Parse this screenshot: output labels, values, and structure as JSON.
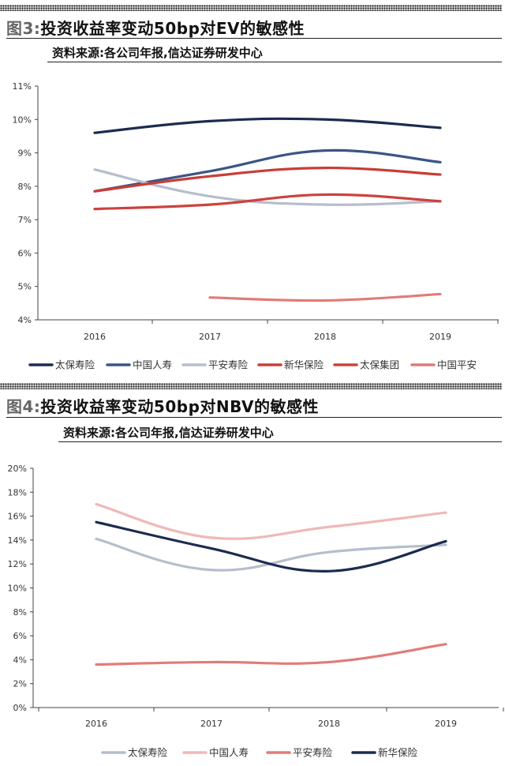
{
  "figures": [
    {
      "label": "图3:",
      "title": "投资收益率变动50bp对EV的敏感性",
      "source": "资料来源:各公司年报,信达证券研发中心",
      "chart_data": {
        "type": "line",
        "title": "投资收益率变动50bp对EV的敏感性",
        "categories": [
          "2016",
          "2017",
          "2018",
          "2019"
        ],
        "yticks": [
          "4%",
          "5%",
          "6%",
          "7%",
          "8%",
          "9%",
          "10%",
          "11%"
        ],
        "ylim": [
          4,
          11
        ],
        "unit": "%",
        "grid": false,
        "legend_position": "bottom",
        "series": [
          {
            "name": "太保寿险",
            "color": "#1c2b4f",
            "values": [
              9.6,
              9.95,
              10.0,
              9.75
            ]
          },
          {
            "name": "中国人寿",
            "color": "#3b5584",
            "values": [
              7.85,
              8.45,
              9.07,
              8.72
            ]
          },
          {
            "name": "平安寿险",
            "color": "#b6bdcc",
            "values": [
              8.5,
              7.7,
              7.45,
              7.55
            ]
          },
          {
            "name": "新华保险",
            "color": "#c83d38",
            "values": [
              7.85,
              8.3,
              8.55,
              8.35
            ]
          },
          {
            "name": "太保集团",
            "color": "#cc433d",
            "values": [
              7.32,
              7.45,
              7.75,
              7.55
            ]
          },
          {
            "name": "中国平安",
            "color": "#e27b78",
            "values": [
              null,
              4.67,
              4.58,
              4.77
            ]
          }
        ]
      }
    },
    {
      "label": "图4:",
      "title": "投资收益率变动50bp对NBV的敏感性",
      "source": "资料来源:各公司年报,信达证券研发中心",
      "chart_data": {
        "type": "line",
        "title": "投资收益率变动50bp对NBV的敏感性",
        "categories": [
          "2016",
          "2017",
          "2018",
          "2019"
        ],
        "yticks": [
          "0%",
          "2%",
          "4%",
          "6%",
          "8%",
          "10%",
          "12%",
          "14%",
          "16%",
          "18%",
          "20%"
        ],
        "ylim": [
          0,
          20
        ],
        "unit": "%",
        "grid": false,
        "legend_position": "bottom",
        "series": [
          {
            "name": "太保寿险",
            "color": "#b6bdcc",
            "values": [
              14.1,
              11.5,
              13.0,
              13.6
            ]
          },
          {
            "name": "中国人寿",
            "color": "#f0b8b8",
            "values": [
              17.0,
              14.2,
              15.1,
              16.3
            ]
          },
          {
            "name": "平安寿险",
            "color": "#e27b78",
            "values": [
              3.6,
              3.8,
              3.8,
              5.3
            ]
          },
          {
            "name": "新华保险",
            "color": "#1c2b4f",
            "values": [
              15.5,
              13.3,
              11.4,
              13.9
            ]
          }
        ]
      }
    }
  ]
}
